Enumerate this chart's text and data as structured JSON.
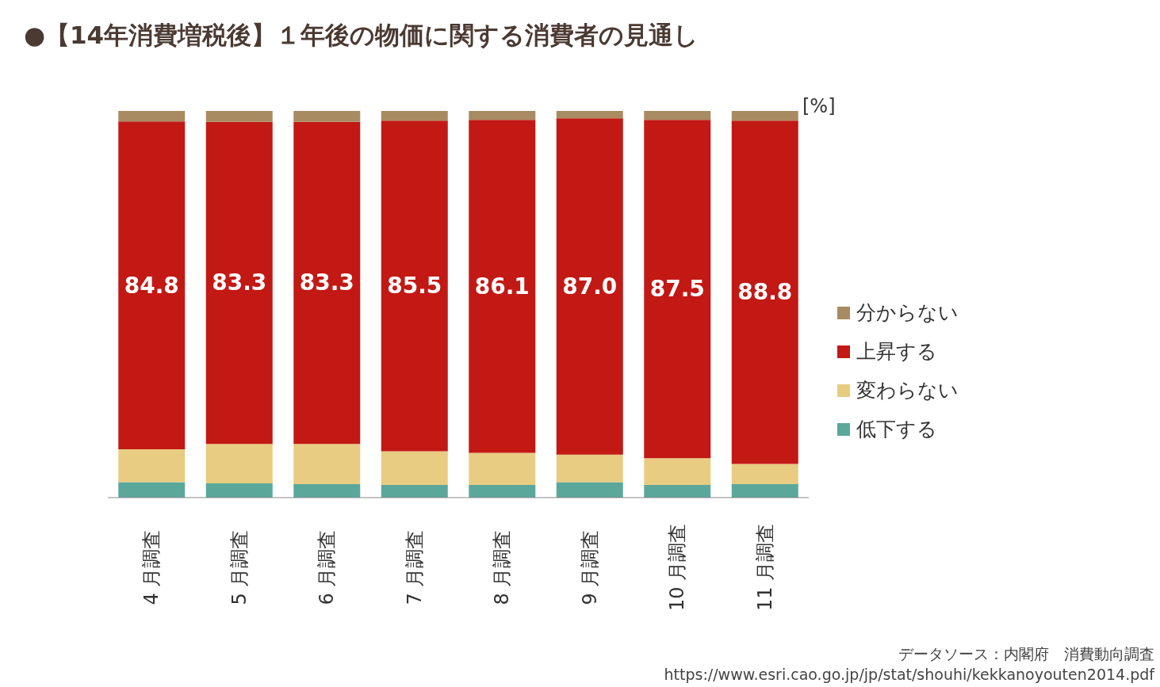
{
  "chart_data": {
    "type": "bar",
    "title": "●【14年消費増税後】１年後の物価に関する消費者の見通し",
    "ylabel": "[%]",
    "categories": [
      "4 月調査",
      "5 月調査",
      "6 月調査",
      "7 月調査",
      "8 月調査",
      "9 月調査",
      "10 月調査",
      "11 月調査"
    ],
    "stacked": true,
    "ylim": [
      0,
      100
    ],
    "tick_labels": "x",
    "legend": "right",
    "series": [
      {
        "name": "低下する",
        "color": "#5ba89b",
        "values": [
          4.0,
          3.7,
          3.5,
          3.3,
          3.3,
          4.0,
          3.3,
          3.5
        ]
      },
      {
        "name": "変わらない",
        "color": "#e8cc82",
        "values": [
          8.5,
          10.2,
          10.4,
          8.7,
          8.3,
          7.1,
          6.9,
          5.2
        ]
      },
      {
        "name": "上昇する",
        "color": "#c21915",
        "values": [
          84.8,
          83.3,
          83.3,
          85.5,
          86.1,
          87.0,
          87.5,
          88.8
        ],
        "value_labels": [
          "84.8",
          "83.3",
          "83.3",
          "85.5",
          "86.1",
          "87.0",
          "87.5",
          "88.8"
        ]
      },
      {
        "name": "分からない",
        "color": "#a98b62",
        "values": [
          2.7,
          2.8,
          2.8,
          2.5,
          2.3,
          1.9,
          2.3,
          2.5
        ]
      }
    ],
    "annotations": [
      "データソース：内閣府　消費動向調査",
      "https://www.esri.cao.go.jp/jp/stat/shouhi/kekkanoyouten2014.pdf"
    ]
  }
}
